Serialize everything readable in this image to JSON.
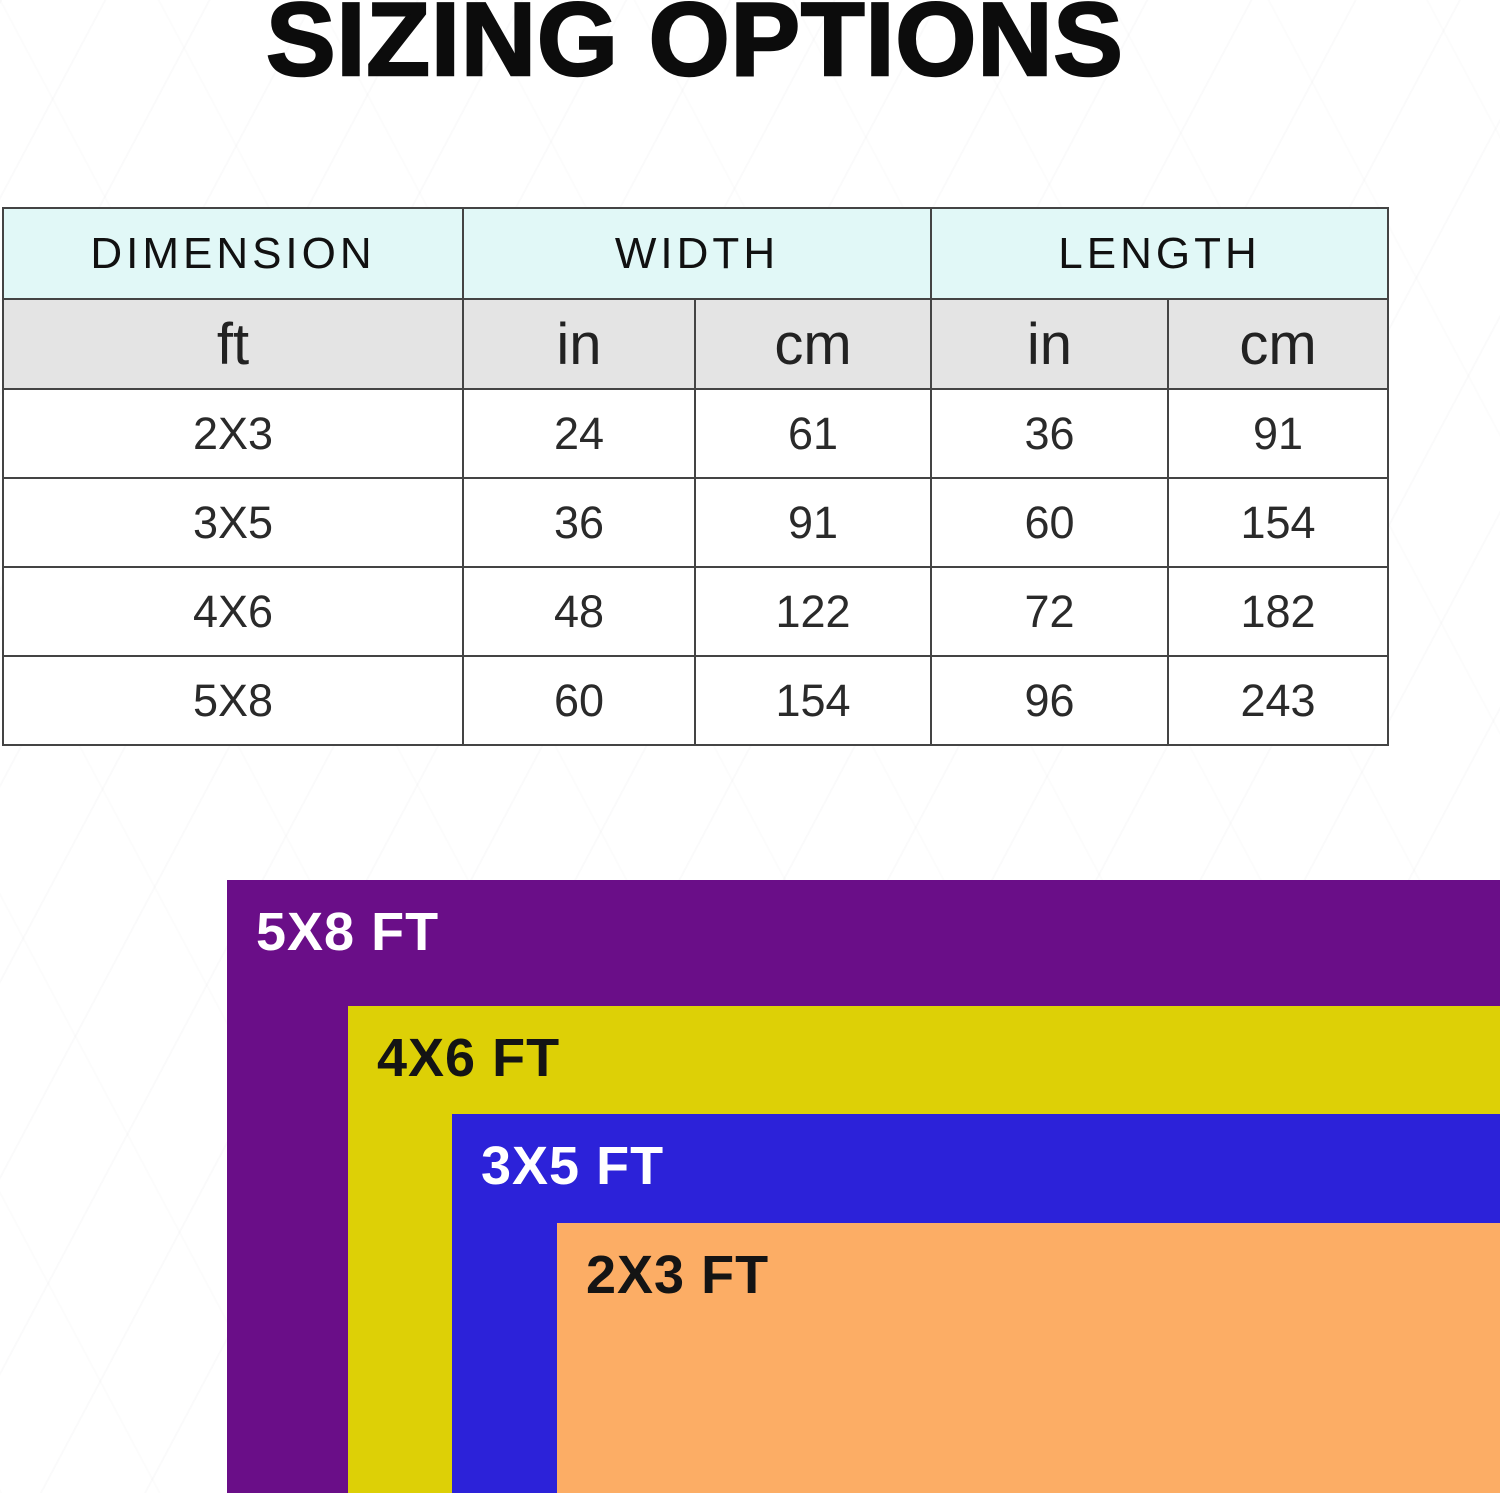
{
  "title": "SIZING OPTIONS",
  "table": {
    "group_headers": [
      "DIMENSION",
      "WIDTH",
      "LENGTH"
    ],
    "unit_headers": [
      "ft",
      "in",
      "cm",
      "in",
      "cm"
    ],
    "rows": [
      [
        "2X3",
        "24",
        "61",
        "36",
        "91"
      ],
      [
        "3X5",
        "36",
        "91",
        "60",
        "154"
      ],
      [
        "4X6",
        "48",
        "122",
        "72",
        "182"
      ],
      [
        "5X8",
        "60",
        "154",
        "96",
        "243"
      ]
    ]
  },
  "diagram": {
    "rects": [
      {
        "label": "5X8 FT",
        "color": "#6a0e88",
        "text_color": "#ffffff"
      },
      {
        "label": "4X6 FT",
        "color": "#ddd006",
        "text_color": "#141414"
      },
      {
        "label": "3X5 FT",
        "color": "#2c22d9",
        "text_color": "#ffffff"
      },
      {
        "label": "2X3 FT",
        "color": "#fcad65",
        "text_color": "#141414"
      }
    ]
  },
  "colors": {
    "title_color": "#0c0c0c",
    "header_group_bg": "#e1f8f7",
    "header_unit_bg": "#e4e4e4",
    "table_border": "#444444"
  },
  "chart_data": [
    {
      "type": "table",
      "title": "SIZING OPTIONS",
      "columns": [
        "DIMENSION ft",
        "WIDTH in",
        "WIDTH cm",
        "LENGTH in",
        "LENGTH cm"
      ],
      "rows": [
        [
          "2X3",
          24,
          61,
          36,
          91
        ],
        [
          "3X5",
          36,
          91,
          60,
          154
        ],
        [
          "4X6",
          48,
          122,
          72,
          182
        ],
        [
          "5X8",
          60,
          154,
          96,
          243
        ]
      ]
    },
    {
      "type": "area",
      "title": "Relative size comparison (nested top-left anchored rectangles)",
      "categories": [
        "5X8 FT",
        "4X6 FT",
        "3X5 FT",
        "2X3 FT"
      ],
      "series": [
        {
          "name": "size_ft_w_x_l",
          "values": [
            [
              5,
              8
            ],
            [
              4,
              6
            ],
            [
              3,
              5
            ],
            [
              2,
              3
            ]
          ]
        }
      ],
      "colors": [
        "#6a0e88",
        "#ddd006",
        "#2c22d9",
        "#fcad65"
      ],
      "legend_position": "none",
      "grid": false
    }
  ]
}
